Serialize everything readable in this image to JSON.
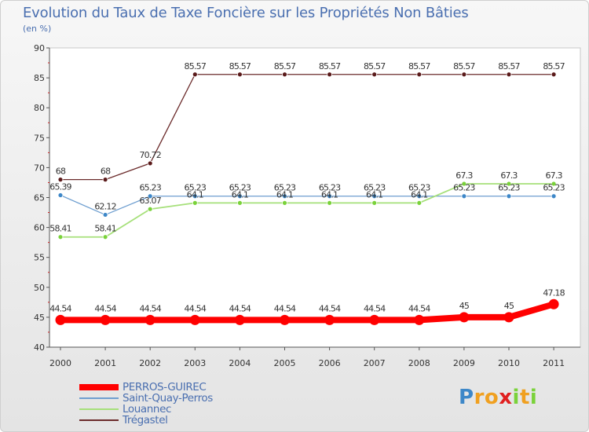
{
  "title": "Evolution du Taux de Taxe Foncière sur les Propriétés Non Bâties",
  "unit": "(en %)",
  "logo": {
    "P": "P",
    "r": "r",
    "o": "o",
    "x": "x",
    "i1": "i",
    "t": "t",
    "i2": "i"
  },
  "colors": {
    "perros": "#ff0000",
    "saint": "#6f9fd0",
    "louannec": "#a6e07a",
    "tregastel": "#6b2b2b",
    "saint_marker": "#3d87c8",
    "louannec_marker": "#7ad23a",
    "tregastel_marker": "#5a1a1a"
  },
  "chart_data": {
    "type": "line",
    "title": "Evolution du Taux de Taxe Foncière sur les Propriétés Non Bâties",
    "ylabel": "(en %)",
    "ylim": [
      40,
      90
    ],
    "yticks": [
      "40",
      "45",
      "50",
      "55",
      "60",
      "65",
      "70",
      "75",
      "80",
      "85",
      "90"
    ],
    "categories": [
      "2000",
      "2001",
      "2002",
      "2003",
      "2004",
      "2005",
      "2006",
      "2007",
      "2008",
      "2009",
      "2010",
      "2011"
    ],
    "series": [
      {
        "name": "Trégastel",
        "key": "tregastel",
        "values": [
          68,
          68,
          70.72,
          85.57,
          85.57,
          85.57,
          85.57,
          85.57,
          85.57,
          85.57,
          85.57,
          85.57
        ],
        "labels": [
          "68",
          "68",
          "70.72",
          "85.57",
          "85.57",
          "85.57",
          "85.57",
          "85.57",
          "85.57",
          "85.57",
          "85.57",
          "85.57"
        ]
      },
      {
        "name": "Saint-Quay-Perros",
        "key": "saint",
        "values": [
          65.39,
          62.12,
          65.23,
          65.23,
          65.23,
          65.23,
          65.23,
          65.23,
          65.23,
          65.23,
          65.23,
          65.23
        ],
        "labels": [
          "65.39",
          "62.12",
          "65.23",
          "65.23",
          "65.23",
          "65.23",
          "65.23",
          "65.23",
          "65.23",
          "65.23",
          "65.23",
          "65.23"
        ]
      },
      {
        "name": "Louannec",
        "key": "louannec",
        "values": [
          58.41,
          58.41,
          63.07,
          64.1,
          64.1,
          64.1,
          64.1,
          64.1,
          64.1,
          67.3,
          67.3,
          67.3
        ],
        "labels": [
          "58.41",
          "58.41",
          "63.07",
          "64.1",
          "64.1",
          "64.1",
          "64.1",
          "64.1",
          "64.1",
          "67.3",
          "67.3",
          "67.3"
        ]
      },
      {
        "name": "PERROS-GUIREC",
        "key": "perros",
        "values": [
          44.54,
          44.54,
          44.54,
          44.54,
          44.54,
          44.54,
          44.54,
          44.54,
          44.54,
          45,
          45,
          47.18
        ],
        "labels": [
          "44.54",
          "44.54",
          "44.54",
          "44.54",
          "44.54",
          "44.54",
          "44.54",
          "44.54",
          "44.54",
          "45",
          "45",
          "47.18"
        ]
      }
    ],
    "legend": [
      "PERROS-GUIREC",
      "Saint-Quay-Perros",
      "Louannec",
      "Trégastel"
    ]
  }
}
